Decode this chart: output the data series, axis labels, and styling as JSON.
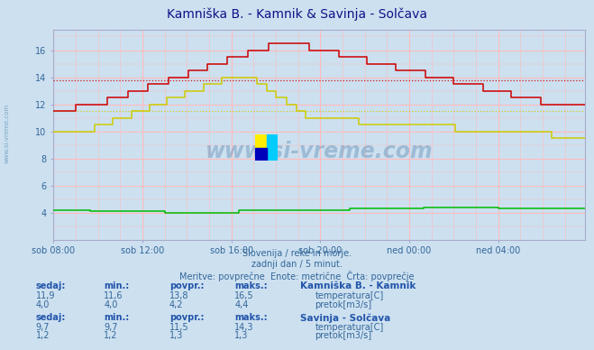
{
  "title": "Kamniška B. - Kamnik & Savinja - Solčava",
  "bg_color": "#cce0f0",
  "plot_bg_color": "#cce0f0",
  "grid_color_v": "#ffbbbb",
  "grid_color_h": "#ffbbbb",
  "watermark_text": "www.si-vreme.com",
  "subtitle_lines": [
    "Slovenija / reke in morje.",
    "zadnji dan / 5 minut.",
    "Meritve: povprečne  Enote: metrične  Črta: povprečje"
  ],
  "xlabel_ticks": [
    "sob 08:00",
    "sob 12:00",
    "sob 16:00",
    "sob 20:00",
    "ned 00:00",
    "ned 04:00"
  ],
  "ylim": [
    2.0,
    17.5
  ],
  "ytick_vals": [
    4,
    6,
    8,
    10,
    12,
    14,
    16
  ],
  "sidewatermark_color": "#6699bb",
  "kamnik_temp_color": "#cc0000",
  "kamnik_pretok_color": "#00bb00",
  "solcava_temp_color": "#cccc00",
  "solcava_pretok_color": "#ff00ff",
  "kamnik_temp_avg": 13.8,
  "solcava_temp_avg": 11.5,
  "table_bold_color": "#2255aa",
  "table_val_color": "#336699",
  "station1_name": "Kamniška B. - Kamnik",
  "station2_name": "Savinja - Solčava",
  "stat1": [
    "11,9",
    "11,6",
    "13,8",
    "16,5"
  ],
  "stat1b": [
    "4,0",
    "4,0",
    "4,2",
    "4,4"
  ],
  "stat2": [
    "9,7",
    "9,7",
    "11,5",
    "14,3"
  ],
  "stat2b": [
    "1,2",
    "1,2",
    "1,3",
    "1,3"
  ],
  "col_headers": [
    "sedaj:",
    "min.:",
    "povpr.:",
    "maks.:"
  ]
}
